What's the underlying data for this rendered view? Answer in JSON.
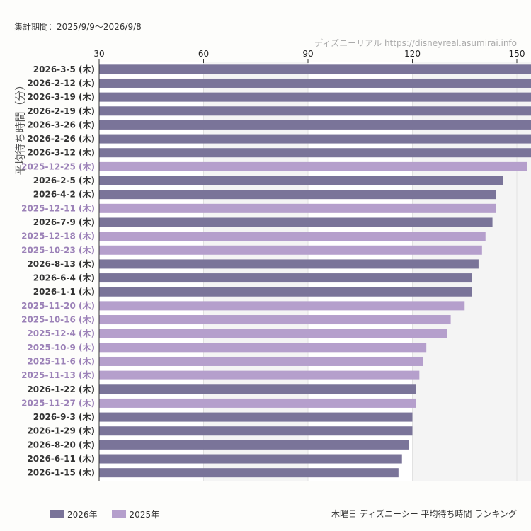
{
  "header": {
    "period": "集計期間：2025/9/9～2026/9/8",
    "credit": "ディズニーリアル https://disneyreal.asumirai.info"
  },
  "chart_data": {
    "type": "bar",
    "orientation": "horizontal",
    "ylabel": "平均待ち時間（分）",
    "caption": "木曜日 ディズニーシー 平均待ち時間 ランキング",
    "xlim": [
      30,
      155
    ],
    "xticks": [
      30,
      60,
      90,
      120,
      150
    ],
    "legend": [
      {
        "name": "2026年",
        "color": "#7a7499"
      },
      {
        "name": "2025年",
        "color": "#b59fcc"
      }
    ],
    "colors": {
      "2026": "#7a7499",
      "2025": "#b59fcc",
      "label2026": "#333333",
      "label2025": "#9c82b8"
    },
    "categories": [
      "2026-3-5 (木)",
      "2026-2-12 (木)",
      "2026-3-19 (木)",
      "2026-2-19 (木)",
      "2026-3-26 (木)",
      "2026-2-26 (木)",
      "2026-3-12 (木)",
      "2025-12-25 (木)",
      "2026-2-5 (木)",
      "2026-4-2 (木)",
      "2025-12-11 (木)",
      "2026-7-9 (木)",
      "2025-12-18 (木)",
      "2025-10-23 (木)",
      "2026-8-13 (木)",
      "2026-6-4 (木)",
      "2026-1-1 (木)",
      "2025-11-20 (木)",
      "2025-10-16 (木)",
      "2025-12-4 (木)",
      "2025-10-9 (木)",
      "2025-11-6 (木)",
      "2025-11-13 (木)",
      "2026-1-22 (木)",
      "2025-11-27 (木)",
      "2026-9-3 (木)",
      "2026-1-29 (木)",
      "2026-8-20 (木)",
      "2026-6-11 (木)",
      "2026-1-15 (木)"
    ],
    "values": [
      162,
      160,
      158,
      157,
      156,
      155,
      155,
      153,
      146,
      144,
      144,
      143,
      141,
      140,
      139,
      137,
      137,
      135,
      131,
      130,
      124,
      123,
      122,
      121,
      121,
      120,
      120,
      119,
      117,
      116
    ],
    "years": [
      "2026",
      "2026",
      "2026",
      "2026",
      "2026",
      "2026",
      "2026",
      "2025",
      "2026",
      "2026",
      "2025",
      "2026",
      "2025",
      "2025",
      "2026",
      "2026",
      "2026",
      "2025",
      "2025",
      "2025",
      "2025",
      "2025",
      "2025",
      "2026",
      "2025",
      "2026",
      "2026",
      "2026",
      "2026",
      "2026"
    ]
  }
}
